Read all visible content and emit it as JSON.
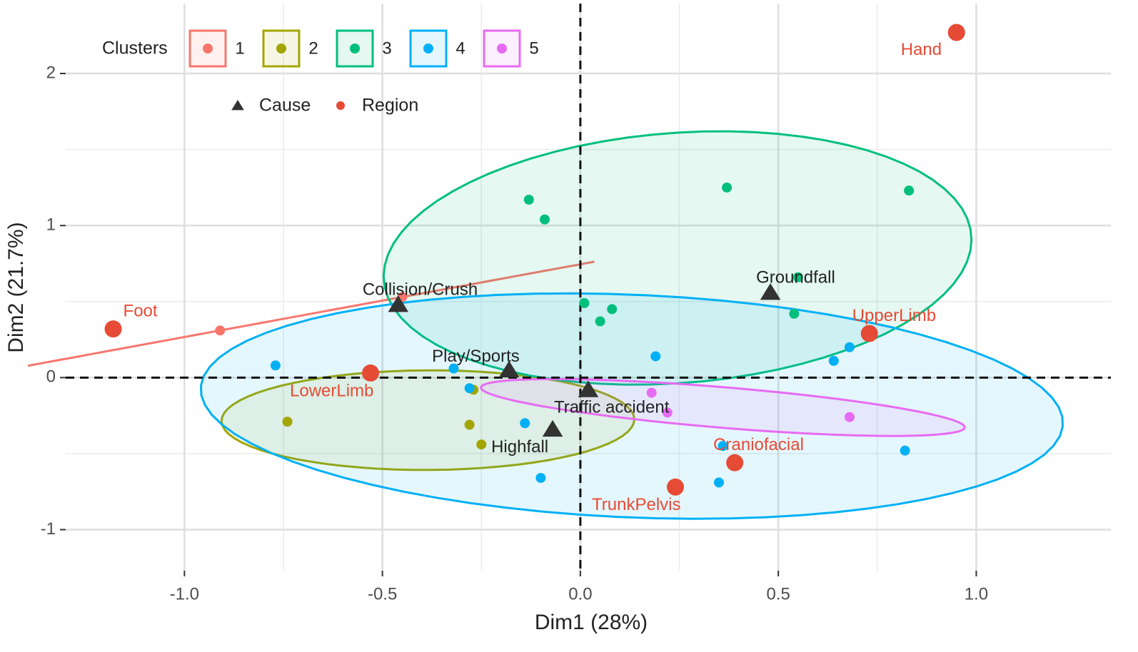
{
  "chart_data": {
    "type": "scatter",
    "xlabel": "Dim1 (28%)",
    "ylabel": "Dim2 (21.7%)",
    "xlim": [
      -1.3,
      1.34
    ],
    "ylim": [
      -1.27,
      2.46
    ],
    "xticks": [
      {
        "value": -1,
        "label": "-1.0"
      },
      {
        "value": -0.5,
        "label": "-0.5"
      },
      {
        "value": 0,
        "label": "0.0"
      },
      {
        "value": 0.5,
        "label": "0.5"
      },
      {
        "value": 1,
        "label": "1.0"
      }
    ],
    "yticks": [
      -1,
      0,
      1,
      2
    ],
    "grid": true,
    "ref_lines": {
      "x": 0,
      "y": 0
    },
    "legend_title": "Clusters",
    "series": [
      {
        "name": "1",
        "color": "#F8766D",
        "x": [
          -0.91,
          -0.45
        ],
        "values": [
          0.31,
          0.53
        ]
      },
      {
        "name": "2",
        "color": "#A3A500",
        "x": [
          -0.74,
          -0.28,
          -0.25,
          -0.27
        ],
        "values": [
          -0.29,
          -0.31,
          -0.44,
          -0.08
        ]
      },
      {
        "name": "3",
        "color": "#00BF7D",
        "x": [
          -0.13,
          -0.09,
          0.37,
          0.83,
          0.55,
          0.54,
          0.01,
          0.08,
          0.05
        ],
        "values": [
          1.17,
          1.04,
          1.25,
          1.23,
          0.66,
          0.42,
          0.49,
          0.45,
          0.37
        ]
      },
      {
        "name": "4",
        "color": "#00B0F6",
        "x": [
          -0.77,
          -0.32,
          -0.28,
          -0.14,
          -0.1,
          0.19,
          0.36,
          0.35,
          0.64,
          0.68,
          0.82
        ],
        "values": [
          0.08,
          0.06,
          -0.07,
          -0.3,
          -0.66,
          0.14,
          -0.45,
          -0.69,
          0.11,
          0.2,
          -0.48
        ]
      },
      {
        "name": "5",
        "color": "#E76BF3",
        "x": [
          0.18,
          0.22,
          0.68
        ],
        "values": [
          -0.1,
          -0.23,
          -0.26
        ]
      }
    ],
    "variables": [
      {
        "name": "Cause",
        "color": "#333333",
        "shape": "triangle",
        "labels": [
          "Collision/Crush",
          "Play/Sports",
          "Traffic accident",
          "Highfall",
          "Groundfall"
        ],
        "x": [
          -0.46,
          -0.18,
          0.02,
          -0.07,
          0.48
        ],
        "values": [
          0.48,
          0.05,
          -0.08,
          -0.34,
          0.56
        ]
      },
      {
        "name": "Region",
        "color": "#E64B35",
        "shape": "circle",
        "labels": [
          "Foot",
          "LowerLimb",
          "Hand",
          "UpperLimb",
          "Craniofacial",
          "TrunkPelvis"
        ],
        "x": [
          -1.18,
          -0.53,
          0.95,
          0.73,
          0.39,
          0.24
        ],
        "values": [
          0.32,
          0.03,
          2.27,
          0.29,
          -0.56,
          -0.72
        ]
      }
    ]
  }
}
